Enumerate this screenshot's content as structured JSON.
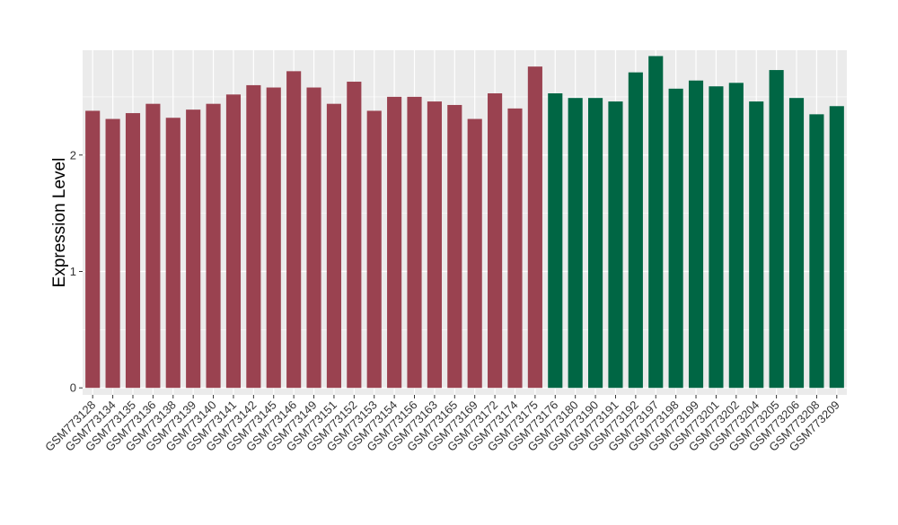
{
  "chart_data": {
    "type": "bar",
    "title": "",
    "xlabel": "",
    "ylabel": "Expression Level",
    "ylim": [
      -0.06,
      2.9
    ],
    "yticks": [
      0,
      1,
      2
    ],
    "grid": true,
    "legend": "none",
    "categories": [
      "GSM773128",
      "GSM773134",
      "GSM773135",
      "GSM773136",
      "GSM773138",
      "GSM773139",
      "GSM773140",
      "GSM773141",
      "GSM773142",
      "GSM773145",
      "GSM773146",
      "GSM773149",
      "GSM773151",
      "GSM773152",
      "GSM773153",
      "GSM773154",
      "GSM773156",
      "GSM773163",
      "GSM773165",
      "GSM773169",
      "GSM773172",
      "GSM773174",
      "GSM773175",
      "GSM773176",
      "GSM773180",
      "GSM773190",
      "GSM773191",
      "GSM773192",
      "GSM773197",
      "GSM773198",
      "GSM773199",
      "GSM773201",
      "GSM773202",
      "GSM773204",
      "GSM773205",
      "GSM773206",
      "GSM773208",
      "GSM773209"
    ],
    "values": [
      2.38,
      2.31,
      2.36,
      2.44,
      2.32,
      2.39,
      2.44,
      2.52,
      2.6,
      2.58,
      2.72,
      2.58,
      2.44,
      2.63,
      2.38,
      2.5,
      2.5,
      2.46,
      2.43,
      2.31,
      2.53,
      2.4,
      2.76,
      2.53,
      2.49,
      2.49,
      2.46,
      2.71,
      2.85,
      2.57,
      2.64,
      2.59,
      2.62,
      2.46,
      2.73,
      2.49,
      2.35,
      2.42
    ],
    "group_colors": [
      "#9A4250",
      "#006644"
    ],
    "group_sizes": [
      23,
      15
    ],
    "panel_background": "#EBEBEB",
    "grid_color": "#FFFFFF"
  }
}
